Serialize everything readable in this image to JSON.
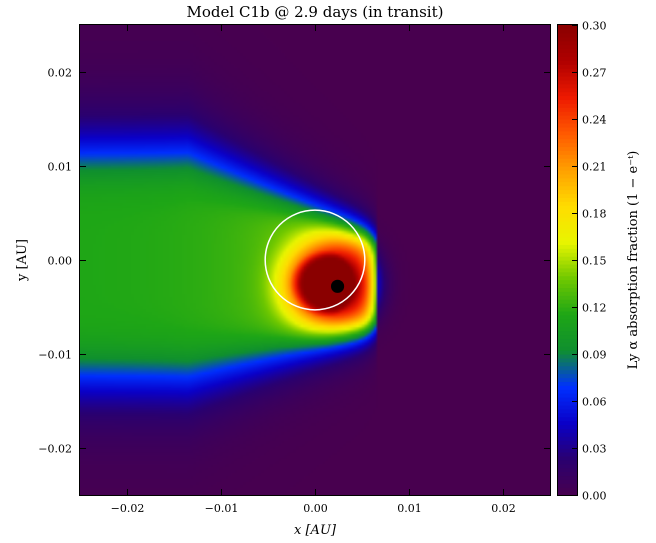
{
  "chart_data": {
    "type": "heatmap",
    "title": "Model C1b @ 2.9 days (in transit)",
    "xlabel": "x [AU]",
    "ylabel": "y [AU]",
    "xlim": [
      -0.025,
      0.025
    ],
    "ylim": [
      -0.025,
      0.025
    ],
    "x_ticks": [
      -0.02,
      -0.01,
      0.0,
      0.01,
      0.02
    ],
    "x_tick_labels": [
      "−0.02",
      "−0.01",
      "0.00",
      "0.01",
      "0.02"
    ],
    "y_ticks": [
      -0.02,
      -0.01,
      0.0,
      0.01,
      0.02
    ],
    "y_tick_labels": [
      "−0.02",
      "−0.01",
      "0.00",
      "0.01",
      "0.02"
    ],
    "colorbar": {
      "label": "Ly α absorption fraction (1 − e⁻ᵗ)",
      "range": [
        0.0,
        0.3
      ],
      "ticks": [
        0.0,
        0.03,
        0.06,
        0.09,
        0.12,
        0.15,
        0.18,
        0.21,
        0.24,
        0.27,
        0.3
      ],
      "tick_labels": [
        "0.00",
        "0.03",
        "0.06",
        "0.09",
        "0.12",
        "0.15",
        "0.18",
        "0.21",
        "0.24",
        "0.27",
        "0.30"
      ],
      "colormap": [
        "#48004f",
        "#2a0070",
        "#0a00c8",
        "#0030ff",
        "#0f8f2f",
        "#1ea616",
        "#70c800",
        "#e8f500",
        "#ffdc00",
        "#ffa000",
        "#ff5a00",
        "#ee1a00",
        "#b00000",
        "#8a0000"
      ]
    },
    "background_value": 0.0,
    "stellar_disk": {
      "center": [
        0.0,
        0.0
      ],
      "radius": 0.0053,
      "color": "#ffffff"
    },
    "planet": {
      "center": [
        0.0024,
        -0.0028
      ],
      "radius": 0.0007,
      "color": "#000000"
    },
    "absorption_cloud": {
      "peak_value": 0.3,
      "peak_center": [
        0.0015,
        -0.0025
      ],
      "tail_direction": "negative x",
      "tail_extends_to": -0.025,
      "leading_edge_x": 0.0065,
      "tail_value_far": 0.11,
      "half_width_y_far": 0.0125
    }
  }
}
